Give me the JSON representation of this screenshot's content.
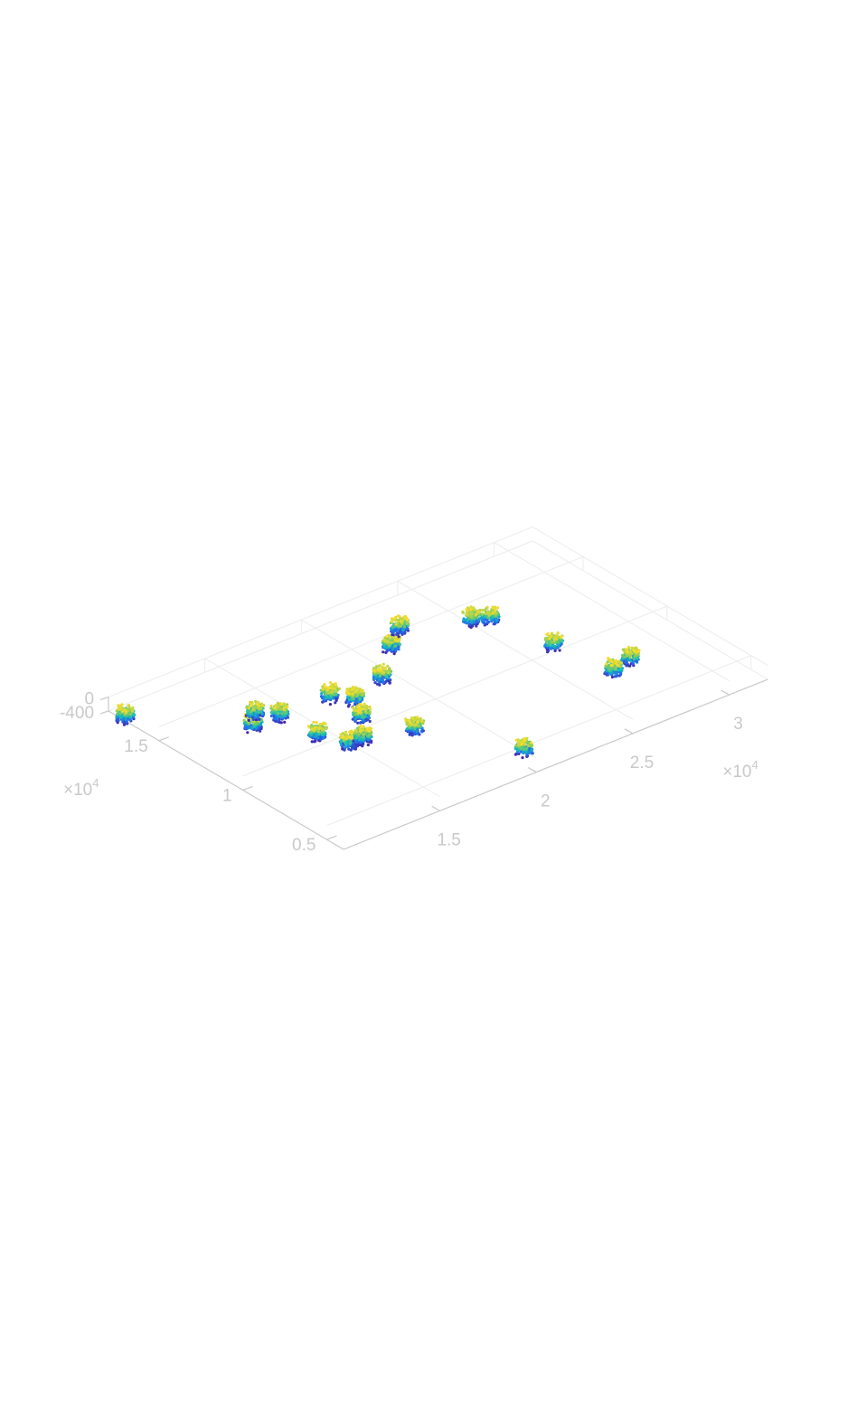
{
  "chart_data": {
    "type": "scatter",
    "projection": "3d",
    "colormap": "parula",
    "colors": {
      "axis": "#c9c9c9",
      "grid": "#ececec",
      "colormap_low": "#4a47f0",
      "colormap_mid": "#2fbfa5",
      "colormap_high": "#f7d63a"
    },
    "grid": true,
    "x_axis": {
      "ticks": [
        {
          "value": 15000,
          "label": "1.5"
        },
        {
          "value": 20000,
          "label": "2"
        },
        {
          "value": 25000,
          "label": "2.5"
        },
        {
          "value": 30000,
          "label": "3"
        }
      ],
      "multiplier": "×10",
      "multiplier_exp": "4",
      "range": [
        10000,
        32000
      ]
    },
    "y_axis": {
      "ticks": [
        {
          "value": 5000,
          "label": "0.5"
        },
        {
          "value": 10000,
          "label": "1"
        },
        {
          "value": 15000,
          "label": "1.5"
        }
      ],
      "multiplier": "×10",
      "multiplier_exp": "4",
      "range": [
        4000,
        18000
      ]
    },
    "z_axis": {
      "ticks": [
        {
          "value": -400,
          "label": "-400"
        },
        {
          "value": 0,
          "label": "0"
        }
      ],
      "range": [
        -400,
        0
      ]
    },
    "clusters": [
      {
        "x": 20600,
        "y": 5400
      },
      {
        "x": 15000,
        "y": 11300
      },
      {
        "x": 10000,
        "y": 17000
      },
      {
        "x": 13500,
        "y": 13400
      },
      {
        "x": 14200,
        "y": 14100
      },
      {
        "x": 15500,
        "y": 10000
      },
      {
        "x": 16200,
        "y": 10000
      },
      {
        "x": 18000,
        "y": 12500
      },
      {
        "x": 17300,
        "y": 11300
      },
      {
        "x": 18300,
        "y": 9300
      },
      {
        "x": 14900,
        "y": 13400
      },
      {
        "x": 17400,
        "y": 13300
      },
      {
        "x": 20000,
        "y": 13200
      },
      {
        "x": 21900,
        "y": 14800
      },
      {
        "x": 23100,
        "y": 15700
      },
      {
        "x": 25800,
        "y": 14500
      },
      {
        "x": 26400,
        "y": 14100
      },
      {
        "x": 27000,
        "y": 11000
      },
      {
        "x": 28600,
        "y": 8300
      },
      {
        "x": 27500,
        "y": 8000
      }
    ]
  }
}
